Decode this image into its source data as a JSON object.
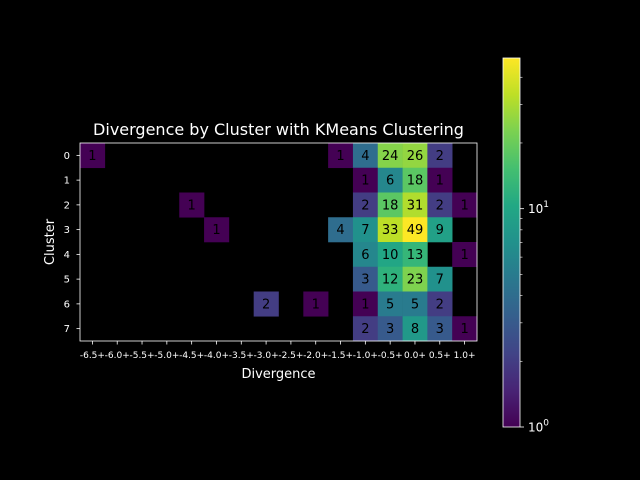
{
  "chart_data": {
    "type": "heatmap",
    "title": "Divergence by Cluster with KMeans Clustering",
    "xlabel": "Divergence",
    "ylabel": "Cluster",
    "x_categories": [
      "-6.5+",
      "-6.0+",
      "-5.5+",
      "-5.0+",
      "-4.5+",
      "-4.0+",
      "-3.5+",
      "-3.0+",
      "-2.5+",
      "-2.0+",
      "-1.5+",
      "-1.0+",
      "-0.5+",
      "0.0+",
      "0.5+",
      "1.0+"
    ],
    "y_categories": [
      "0",
      "1",
      "2",
      "3",
      "4",
      "5",
      "6",
      "7"
    ],
    "values": [
      [
        1,
        null,
        null,
        null,
        null,
        null,
        null,
        null,
        null,
        null,
        1,
        4,
        24,
        26,
        2,
        null
      ],
      [
        null,
        null,
        null,
        null,
        null,
        null,
        null,
        null,
        null,
        null,
        null,
        1,
        6,
        18,
        1,
        null
      ],
      [
        null,
        null,
        null,
        null,
        1,
        null,
        null,
        null,
        null,
        null,
        null,
        2,
        18,
        31,
        2,
        1
      ],
      [
        null,
        null,
        null,
        null,
        null,
        1,
        null,
        null,
        null,
        null,
        4,
        7,
        33,
        49,
        9,
        null
      ],
      [
        null,
        null,
        null,
        null,
        null,
        null,
        null,
        null,
        null,
        null,
        null,
        6,
        10,
        13,
        null,
        1
      ],
      [
        null,
        null,
        null,
        null,
        null,
        null,
        null,
        null,
        null,
        null,
        null,
        3,
        12,
        23,
        7,
        null
      ],
      [
        null,
        null,
        null,
        null,
        null,
        null,
        null,
        2,
        null,
        1,
        null,
        1,
        5,
        5,
        2,
        null
      ],
      [
        null,
        null,
        null,
        null,
        null,
        null,
        null,
        null,
        null,
        null,
        null,
        2,
        3,
        8,
        3,
        1
      ]
    ],
    "colorbar": {
      "scale": "log",
      "range": [
        1,
        49
      ],
      "colormap": "viridis",
      "ticks": [
        {
          "label": "10",
          "exp": "0",
          "value": 1
        },
        {
          "label": "10",
          "exp": "1",
          "value": 10
        }
      ]
    },
    "background": "#000000"
  }
}
